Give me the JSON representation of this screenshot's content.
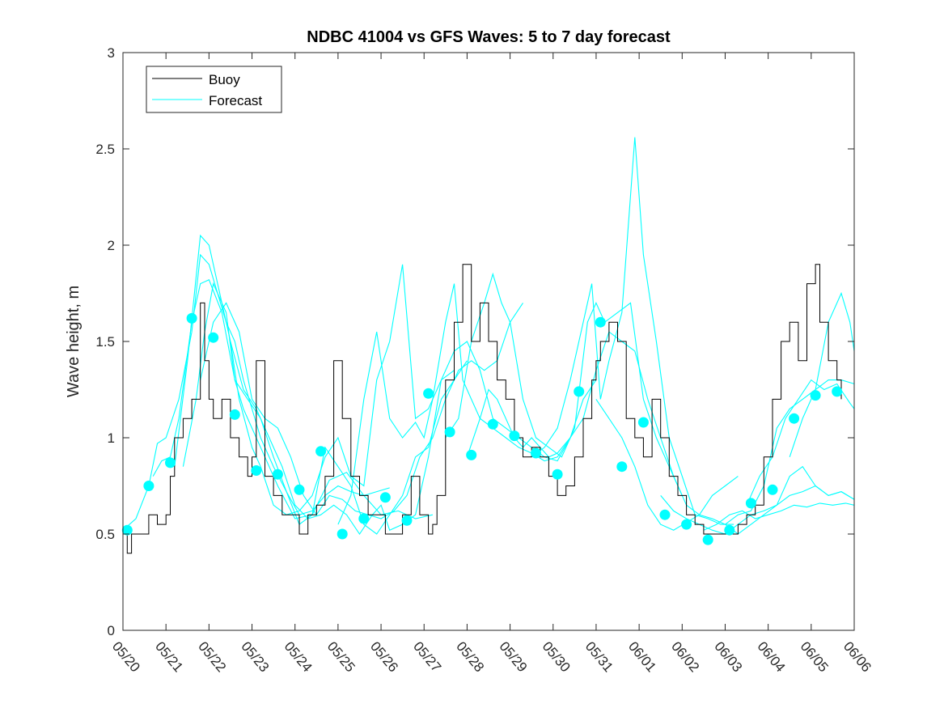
{
  "chart_data": {
    "type": "line",
    "title": "NDBC 41004 vs GFS Waves: 5 to 7 day forecast",
    "xlabel": "",
    "ylabel": "Wave height, m",
    "ylim": [
      0,
      3
    ],
    "yticks": [
      0,
      0.5,
      1,
      1.5,
      2,
      2.5,
      3
    ],
    "ytick_labels": [
      "0",
      "0.5",
      "1",
      "1.5",
      "2",
      "2.5",
      "3"
    ],
    "x_unit": "days since 05/20 00:00 (May 20 = 0)",
    "xlim": [
      0,
      17
    ],
    "xticks": [
      0,
      1,
      2,
      3,
      4,
      5,
      6,
      7,
      8,
      9,
      10,
      11,
      12,
      13,
      14,
      15,
      16,
      17
    ],
    "xtick_labels": [
      "05/20",
      "05/21",
      "05/22",
      "05/23",
      "05/24",
      "05/25",
      "05/26",
      "05/27",
      "05/28",
      "05/29",
      "05/30",
      "05/31",
      "06/01",
      "06/02",
      "06/03",
      "06/04",
      "06/05",
      "06/06"
    ],
    "grid": false,
    "legend": {
      "position": "top-left",
      "entries": [
        "Buoy",
        "Forecast"
      ]
    },
    "colors": {
      "buoy": "#000000",
      "forecast": "#00ffff",
      "axis": "#262626"
    },
    "buoy": {
      "name": "Buoy",
      "x": [
        0,
        0.1,
        0.2,
        0.4,
        0.6,
        0.8,
        1.0,
        1.1,
        1.2,
        1.4,
        1.6,
        1.8,
        1.9,
        2.0,
        2.1,
        2.3,
        2.5,
        2.7,
        2.9,
        3.0,
        3.1,
        3.3,
        3.5,
        3.7,
        3.9,
        4.1,
        4.3,
        4.5,
        4.7,
        4.9,
        5.1,
        5.3,
        5.5,
        5.7,
        5.9,
        6.1,
        6.3,
        6.5,
        6.7,
        6.9,
        7.1,
        7.2,
        7.3,
        7.5,
        7.7,
        7.9,
        8.1,
        8.3,
        8.5,
        8.7,
        8.9,
        9.1,
        9.3,
        9.5,
        9.7,
        9.9,
        10.1,
        10.3,
        10.5,
        10.7,
        10.9,
        11.0,
        11.1,
        11.3,
        11.5,
        11.7,
        11.9,
        12.1,
        12.3,
        12.5,
        12.7,
        12.9,
        13.1,
        13.3,
        13.5,
        13.7,
        13.9,
        14.1,
        14.3,
        14.5,
        14.7,
        14.9,
        15.1,
        15.3,
        15.5,
        15.7,
        15.9,
        16.1,
        16.2,
        16.4,
        16.6,
        16.7
      ],
      "y": [
        0.5,
        0.4,
        0.5,
        0.5,
        0.6,
        0.55,
        0.6,
        0.8,
        1.0,
        1.1,
        1.2,
        1.7,
        1.4,
        1.2,
        1.1,
        1.2,
        1.0,
        0.9,
        0.8,
        0.9,
        1.4,
        0.8,
        0.7,
        0.6,
        0.6,
        0.5,
        0.6,
        0.65,
        0.8,
        1.4,
        1.1,
        0.8,
        0.7,
        0.6,
        0.6,
        0.5,
        0.5,
        0.6,
        0.8,
        0.6,
        0.5,
        0.55,
        0.7,
        1.3,
        1.6,
        1.9,
        1.5,
        1.7,
        1.5,
        1.3,
        1.2,
        1.0,
        0.9,
        0.95,
        0.9,
        0.8,
        0.7,
        0.75,
        0.9,
        1.1,
        1.3,
        1.4,
        1.5,
        1.6,
        1.5,
        1.1,
        1.0,
        0.9,
        1.2,
        1.0,
        0.8,
        0.7,
        0.6,
        0.55,
        0.5,
        0.5,
        0.5,
        0.5,
        0.55,
        0.6,
        0.65,
        0.9,
        1.2,
        1.5,
        1.6,
        1.4,
        1.8,
        1.9,
        1.6,
        1.4,
        1.3,
        1.2
      ]
    },
    "forecast_lines": [
      {
        "x": [
          0.0,
          0.3,
          0.6,
          0.8,
          1.0,
          1.3,
          1.6,
          1.8,
          2.0,
          2.2,
          2.4,
          2.6,
          2.8,
          3.0,
          3.2,
          3.5,
          3.8,
          4.1,
          4.4,
          4.7,
          5.0,
          5.3,
          5.6,
          5.9,
          6.2
        ],
        "y": [
          0.52,
          0.58,
          0.75,
          0.97,
          1.0,
          1.2,
          1.55,
          1.95,
          1.9,
          1.75,
          1.6,
          1.5,
          1.3,
          1.15,
          1.0,
          0.85,
          0.72,
          0.6,
          0.62,
          0.7,
          0.75,
          0.72,
          0.7,
          0.72,
          0.74
        ]
      },
      {
        "x": [
          0.7,
          0.9,
          1.1,
          1.3,
          1.6,
          1.8,
          2.0,
          2.3,
          2.6,
          2.8,
          3.0,
          3.3,
          3.6,
          4.0,
          4.4,
          4.8,
          5.2,
          5.6,
          6.0,
          6.4,
          6.8,
          7.2
        ],
        "y": [
          0.8,
          0.88,
          0.9,
          1.1,
          1.6,
          1.8,
          1.82,
          1.65,
          1.3,
          1.15,
          1.05,
          0.9,
          0.75,
          0.58,
          0.6,
          0.78,
          0.82,
          0.7,
          0.6,
          0.62,
          0.58,
          0.6
        ]
      },
      {
        "x": [
          1.2,
          1.5,
          1.8,
          2.0,
          2.2,
          2.5,
          2.7,
          3.0,
          3.2,
          3.5,
          3.8,
          4.1,
          4.4,
          4.7,
          5.0,
          5.3,
          5.6,
          5.9,
          6.2,
          6.5,
          6.8,
          7.1,
          7.4,
          7.7
        ],
        "y": [
          0.85,
          1.4,
          2.05,
          2.0,
          1.8,
          1.5,
          1.2,
          0.95,
          0.85,
          0.65,
          0.6,
          0.62,
          0.7,
          0.9,
          1.0,
          0.8,
          0.75,
          1.3,
          1.5,
          1.9,
          1.1,
          1.15,
          1.3,
          1.35
        ]
      },
      {
        "x": [
          1.4,
          1.7,
          1.9,
          2.1,
          2.4,
          2.6,
          2.9,
          3.2,
          3.5,
          3.8,
          4.1,
          4.4,
          4.7,
          5.0,
          5.3,
          5.6,
          5.9,
          6.2,
          6.5,
          6.8,
          7.1,
          7.4,
          7.7,
          8.0
        ],
        "y": [
          0.85,
          1.2,
          1.55,
          1.8,
          1.65,
          1.3,
          1.2,
          1.1,
          0.9,
          0.72,
          0.55,
          0.6,
          0.95,
          0.85,
          0.75,
          0.55,
          0.5,
          0.6,
          0.7,
          0.9,
          0.95,
          1.2,
          1.3,
          1.4
        ]
      },
      {
        "x": [
          1.8,
          2.1,
          2.4,
          2.7,
          3.0,
          3.3,
          3.6,
          3.9,
          4.2,
          4.5,
          4.8,
          5.1,
          5.4,
          5.7,
          6.0,
          6.3,
          6.6,
          6.9,
          7.2,
          7.5,
          7.8,
          8.1,
          8.4,
          8.7,
          9.0,
          9.3
        ],
        "y": [
          1.3,
          1.6,
          1.7,
          1.55,
          1.2,
          1.1,
          1.05,
          0.9,
          0.7,
          0.6,
          0.7,
          0.68,
          0.62,
          0.6,
          0.58,
          0.62,
          0.7,
          0.9,
          1.0,
          1.2,
          1.35,
          1.4,
          1.35,
          1.4,
          1.6,
          1.7
        ]
      },
      {
        "x": [
          2.5,
          2.8,
          3.1,
          3.4,
          3.7,
          4.0,
          4.3,
          4.6,
          4.9,
          5.2,
          5.5,
          5.8,
          6.0,
          6.2,
          6.5,
          6.8,
          7.1,
          7.4,
          7.7,
          8.0,
          8.3,
          8.6,
          8.9,
          9.2,
          9.5,
          9.8,
          10.1,
          10.4
        ],
        "y": [
          1.5,
          1.25,
          1.15,
          1.0,
          0.85,
          0.65,
          0.58,
          0.6,
          0.65,
          0.6,
          0.5,
          0.6,
          0.65,
          0.52,
          0.55,
          0.6,
          0.9,
          1.3,
          1.45,
          1.5,
          1.35,
          1.1,
          1.05,
          1.0,
          0.95,
          0.9,
          0.88,
          1.0
        ]
      },
      {
        "x": [
          5.0,
          5.3,
          5.6,
          5.9,
          6.2,
          6.5,
          6.8,
          7.0,
          7.2,
          7.5,
          7.7,
          7.9,
          8.1,
          8.3,
          8.5,
          8.7,
          8.9,
          9.1,
          9.3,
          9.5,
          9.7,
          9.9,
          10.1,
          10.4,
          10.7,
          11.0
        ],
        "y": [
          0.55,
          0.7,
          1.2,
          1.55,
          1.1,
          1.0,
          1.08,
          1.0,
          1.2,
          1.6,
          1.8,
          1.3,
          1.2,
          1.1,
          1.25,
          1.2,
          1.1,
          1.0,
          0.95,
          1.0,
          0.95,
          0.9,
          0.92,
          1.0,
          1.2,
          1.3
        ]
      },
      {
        "x": [
          7.5,
          7.8,
          8.1,
          8.4,
          8.6,
          8.8,
          9.0,
          9.3,
          9.6,
          9.9,
          10.2,
          10.5,
          10.8,
          11.0,
          11.2,
          11.5,
          11.8,
          12.1,
          12.4,
          12.7,
          13.0
        ],
        "y": [
          1.0,
          1.1,
          1.5,
          1.7,
          1.85,
          1.7,
          1.6,
          1.2,
          1.0,
          0.95,
          0.9,
          1.05,
          1.6,
          1.7,
          1.6,
          1.65,
          1.7,
          1.2,
          1.0,
          0.85,
          0.7
        ]
      },
      {
        "x": [
          8.0,
          8.3,
          8.6,
          8.9,
          9.2,
          9.5,
          9.8,
          10.1,
          10.4,
          10.7,
          11.0,
          11.3,
          11.6,
          11.9,
          12.2,
          12.5,
          12.8,
          13.1,
          13.4,
          13.7,
          14.0,
          14.3
        ],
        "y": [
          0.9,
          1.1,
          1.05,
          1.0,
          0.95,
          0.92,
          0.88,
          0.9,
          1.0,
          1.1,
          1.35,
          1.55,
          1.5,
          1.45,
          1.2,
          1.0,
          0.8,
          0.65,
          0.6,
          0.7,
          0.75,
          0.8
        ]
      },
      {
        "x": [
          9.5,
          9.8,
          10.1,
          10.4,
          10.7,
          10.9,
          11.1,
          11.3,
          11.6,
          11.9,
          12.1,
          12.4,
          12.7,
          13.0,
          13.3,
          13.6,
          13.9,
          14.2
        ],
        "y": [
          0.9,
          0.95,
          1.05,
          1.3,
          1.6,
          1.8,
          1.2,
          1.4,
          1.65,
          2.56,
          1.95,
          1.5,
          1.0,
          0.8,
          0.6,
          0.58,
          0.55,
          0.55
        ]
      },
      {
        "x": [
          11.0,
          11.3,
          11.6,
          11.9,
          12.2,
          12.5,
          12.8,
          13.1,
          13.4,
          13.7,
          14.0,
          14.3,
          14.6,
          14.9,
          15.2,
          15.5,
          15.8,
          16.1,
          16.4,
          16.7,
          17.0
        ],
        "y": [
          1.2,
          1.1,
          1.0,
          0.85,
          0.65,
          0.55,
          0.52,
          0.56,
          0.6,
          0.58,
          0.55,
          0.5,
          0.55,
          0.6,
          0.65,
          0.8,
          0.85,
          0.75,
          0.7,
          0.72,
          0.68
        ]
      },
      {
        "x": [
          12.5,
          12.8,
          13.1,
          13.4,
          13.7,
          14.0,
          14.3,
          14.6,
          14.9,
          15.2,
          15.5,
          15.8,
          16.1,
          16.4,
          16.7,
          17.0
        ],
        "y": [
          0.7,
          0.62,
          0.58,
          0.55,
          0.52,
          0.5,
          0.55,
          0.6,
          0.62,
          0.65,
          0.7,
          0.72,
          0.75,
          0.7,
          0.72,
          0.68
        ]
      },
      {
        "x": [
          13.5,
          13.8,
          14.1,
          14.4,
          14.7,
          15.0,
          15.3,
          15.6,
          15.9,
          16.2,
          16.5,
          16.8,
          17.0
        ],
        "y": [
          0.52,
          0.55,
          0.6,
          0.62,
          0.58,
          0.6,
          0.62,
          0.65,
          0.64,
          0.66,
          0.65,
          0.66,
          0.65
        ]
      },
      {
        "x": [
          14.0,
          14.3,
          14.6,
          14.9,
          15.2,
          15.5,
          15.8,
          16.1,
          16.4,
          16.7,
          17.0
        ],
        "y": [
          0.55,
          0.6,
          0.62,
          0.75,
          1.05,
          1.15,
          1.2,
          1.25,
          1.3,
          1.3,
          1.28
        ]
      },
      {
        "x": [
          14.5,
          14.8,
          15.1,
          15.4,
          15.7,
          16.0,
          16.3,
          16.6,
          16.9,
          17.0
        ],
        "y": [
          0.65,
          0.8,
          0.9,
          1.1,
          1.2,
          1.3,
          1.25,
          1.28,
          1.18,
          1.15
        ]
      },
      {
        "x": [
          15.5,
          15.8,
          16.1,
          16.4,
          16.7,
          16.9,
          17.0
        ],
        "y": [
          0.9,
          1.1,
          1.25,
          1.6,
          1.75,
          1.6,
          1.45
        ]
      }
    ],
    "forecast_markers": {
      "name": "Forecast",
      "x": [
        0.1,
        0.6,
        1.1,
        1.6,
        2.1,
        2.6,
        3.1,
        3.6,
        4.1,
        4.6,
        5.1,
        5.6,
        6.1,
        6.6,
        7.1,
        7.6,
        8.1,
        8.6,
        9.1,
        9.6,
        10.1,
        10.6,
        11.1,
        11.6,
        12.1,
        12.6,
        13.1,
        13.6,
        14.1,
        14.6,
        15.1,
        15.6,
        16.1,
        16.6
      ],
      "y": [
        0.52,
        0.75,
        0.87,
        1.62,
        1.52,
        1.12,
        0.83,
        0.81,
        0.73,
        0.93,
        0.5,
        0.58,
        0.69,
        0.57,
        1.23,
        1.03,
        0.91,
        1.07,
        1.01,
        0.92,
        0.81,
        1.24,
        1.6,
        0.85,
        1.08,
        0.6,
        0.55,
        0.47,
        0.52,
        0.66,
        0.73,
        1.1,
        1.22,
        1.24
      ]
    }
  }
}
